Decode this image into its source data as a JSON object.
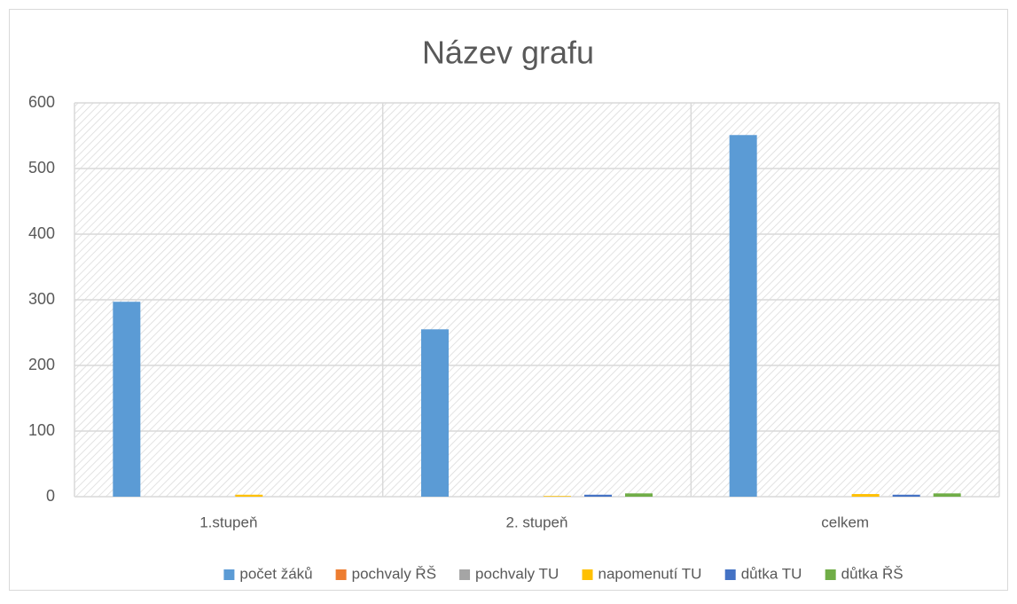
{
  "chart_data": {
    "type": "bar",
    "title": "Název grafu",
    "categories": [
      "1.stupeň",
      "2. stupeň",
      "celkem"
    ],
    "series": [
      {
        "name": "počet žáků",
        "color": "#5b9bd5",
        "values": [
          297,
          255,
          551
        ]
      },
      {
        "name": "pochvaly ŘŠ",
        "color": "#ed7d31",
        "values": [
          0,
          0,
          0
        ]
      },
      {
        "name": "pochvaly TU",
        "color": "#a5a5a5",
        "values": [
          0,
          0,
          0
        ]
      },
      {
        "name": "napomenutí TU",
        "color": "#ffc000",
        "values": [
          3,
          1,
          4
        ]
      },
      {
        "name": "důtka TU",
        "color": "#4472c4",
        "values": [
          0,
          3,
          3
        ]
      },
      {
        "name": "důtka ŘŠ",
        "color": "#70ad47",
        "values": [
          0,
          5,
          5
        ]
      }
    ],
    "ylim": [
      0,
      600
    ],
    "yticks": [
      0,
      100,
      200,
      300,
      400,
      500,
      600
    ],
    "grid": true,
    "legend": "bottom"
  }
}
